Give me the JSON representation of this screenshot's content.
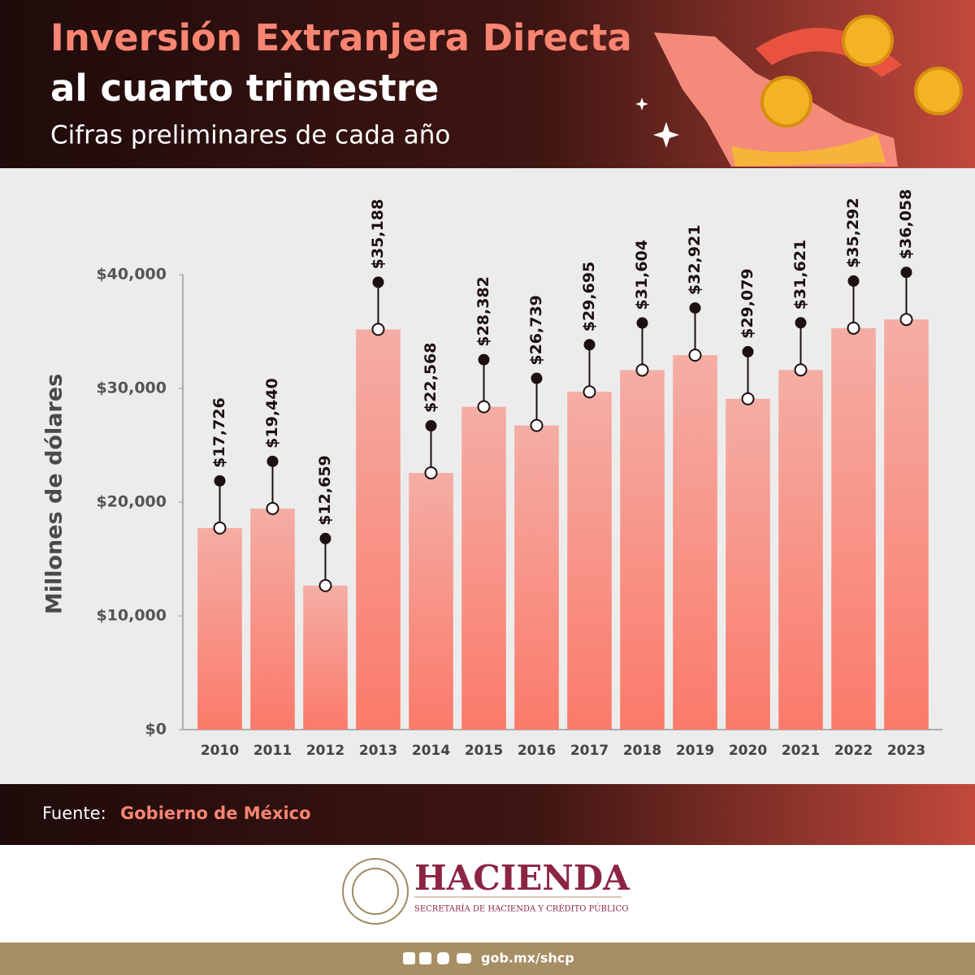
{
  "chart_data": {
    "type": "bar",
    "title": [
      "Inversión Extranjera Directa",
      "al cuarto trimestre"
    ],
    "subtitle": "Cifras preliminares de cada año",
    "y_label": "Millones de dólares",
    "categories": [
      "2010",
      "2011",
      "2012",
      "2013",
      "2014",
      "2015",
      "2016",
      "2017",
      "2018",
      "2019",
      "2020",
      "2021",
      "2022",
      "2023"
    ],
    "values": [
      17726,
      19440,
      12659,
      35188,
      22568,
      28382,
      26739,
      29695,
      31604,
      32921,
      29079,
      31621,
      35292,
      36058
    ],
    "value_labels": [
      "$17,726",
      "$19,440",
      "$12,659",
      "$35,188",
      "$22,568",
      "$28,382",
      "$26,739",
      "$29,695",
      "$31,604",
      "$32,921",
      "$29,079",
      "$31,621",
      "$35,292",
      "$36,058"
    ],
    "color": "#fb7a6a",
    "ylim": [
      0,
      40000
    ],
    "yticks": [
      {
        "value": 0,
        "label": "$0"
      },
      {
        "value": 10000,
        "label": "$10,000"
      },
      {
        "value": 20000,
        "label": "$20,000"
      },
      {
        "value": 30000,
        "label": "$30,000"
      },
      {
        "value": 40000,
        "label": "$40,000"
      }
    ],
    "grid": false
  },
  "source": {
    "prefix": "Fuente:",
    "name": "Gobierno de México"
  },
  "brand": {
    "name": "HACIENDA",
    "tagline": "SECRETARÍA DE HACIENDA Y CRÉDITO PÚBLICO",
    "url": "gob.mx/shcp"
  }
}
